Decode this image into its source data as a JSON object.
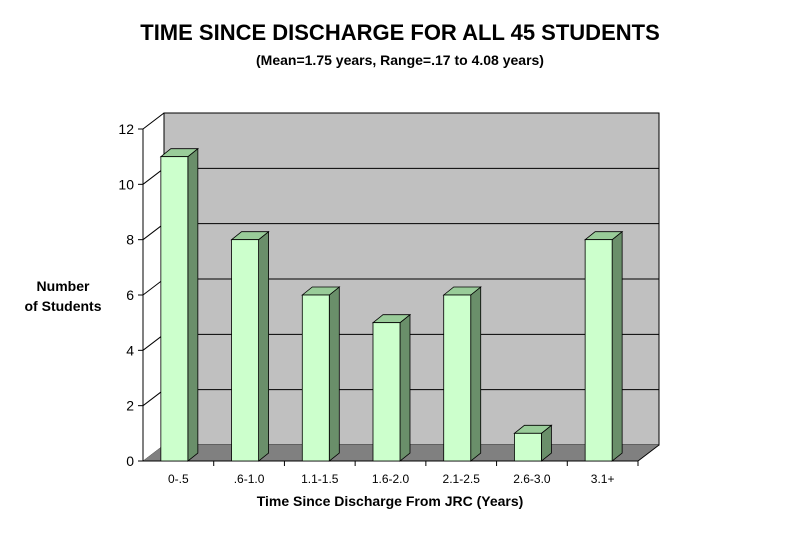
{
  "chart_data": {
    "type": "bar",
    "title": "TIME SINCE DISCHARGE FOR ALL 45 STUDENTS",
    "subtitle": "(Mean=1.75 years, Range=.17 to 4.08 years)",
    "xlabel": "Time Since Discharge From JRC (Years)",
    "ylabel": [
      "Number",
      "of Students"
    ],
    "categories": [
      "0-.5",
      ".6-1.0",
      "1.1-1.5",
      "1.6-2.0",
      "2.1-2.5",
      "2.6-3.0",
      "3.1+"
    ],
    "values": [
      11,
      8,
      6,
      5,
      6,
      1,
      8
    ],
    "ylim": [
      0,
      12
    ],
    "yticks": [
      0,
      2,
      4,
      6,
      8,
      10,
      12
    ],
    "grid": true,
    "colors": {
      "bar_front": "#ccffcc",
      "bar_top": "#99cc99",
      "bar_side": "#6a8f6a",
      "back_wall": "#c0c0c0",
      "side_wall": "#ffffff",
      "floor": "#808080",
      "grid": "#000000"
    }
  }
}
